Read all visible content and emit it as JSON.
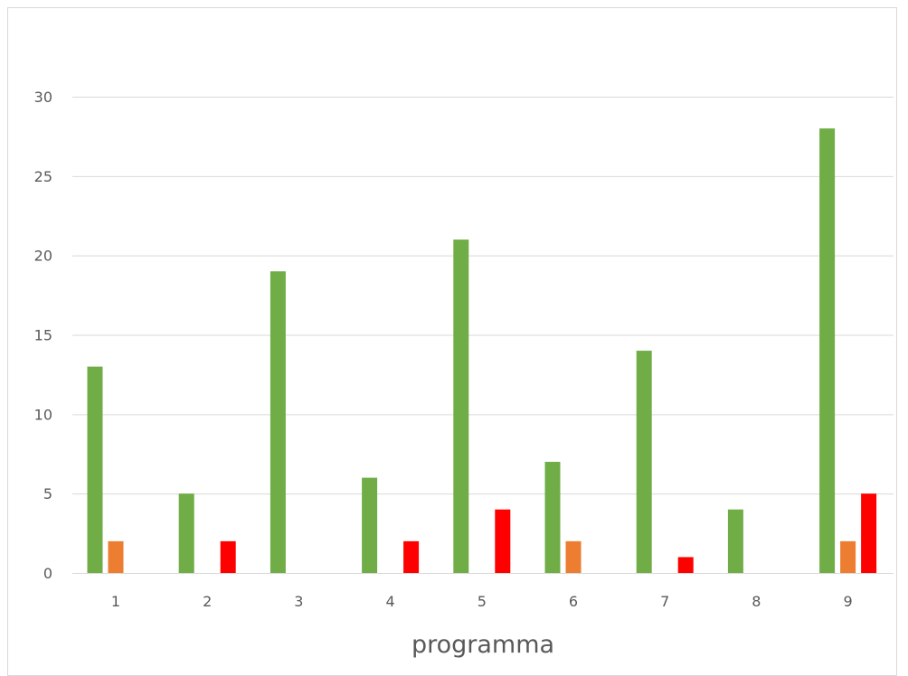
{
  "chart_data": {
    "type": "bar",
    "categories": [
      "1",
      "2",
      "3",
      "4",
      "5",
      "6",
      "7",
      "8",
      "9"
    ],
    "series": [
      {
        "color": "#70ad47",
        "values": [
          13,
          5,
          19,
          6,
          21,
          7,
          14,
          4,
          28
        ]
      },
      {
        "color": "#ed7d31",
        "values": [
          2,
          0,
          0,
          0,
          0,
          2,
          0,
          0,
          2
        ]
      },
      {
        "color": "#ff0000",
        "values": [
          0,
          2,
          0,
          2,
          4,
          0,
          1,
          0,
          5
        ]
      }
    ],
    "xlabel": "programma",
    "ylabel": "",
    "ylim": [
      0,
      30
    ],
    "yticks": [
      "0",
      "5",
      "10",
      "15",
      "20",
      "25",
      "30"
    ],
    "grid": true,
    "gridline_color": "#d9d9d9",
    "legend": "none"
  }
}
